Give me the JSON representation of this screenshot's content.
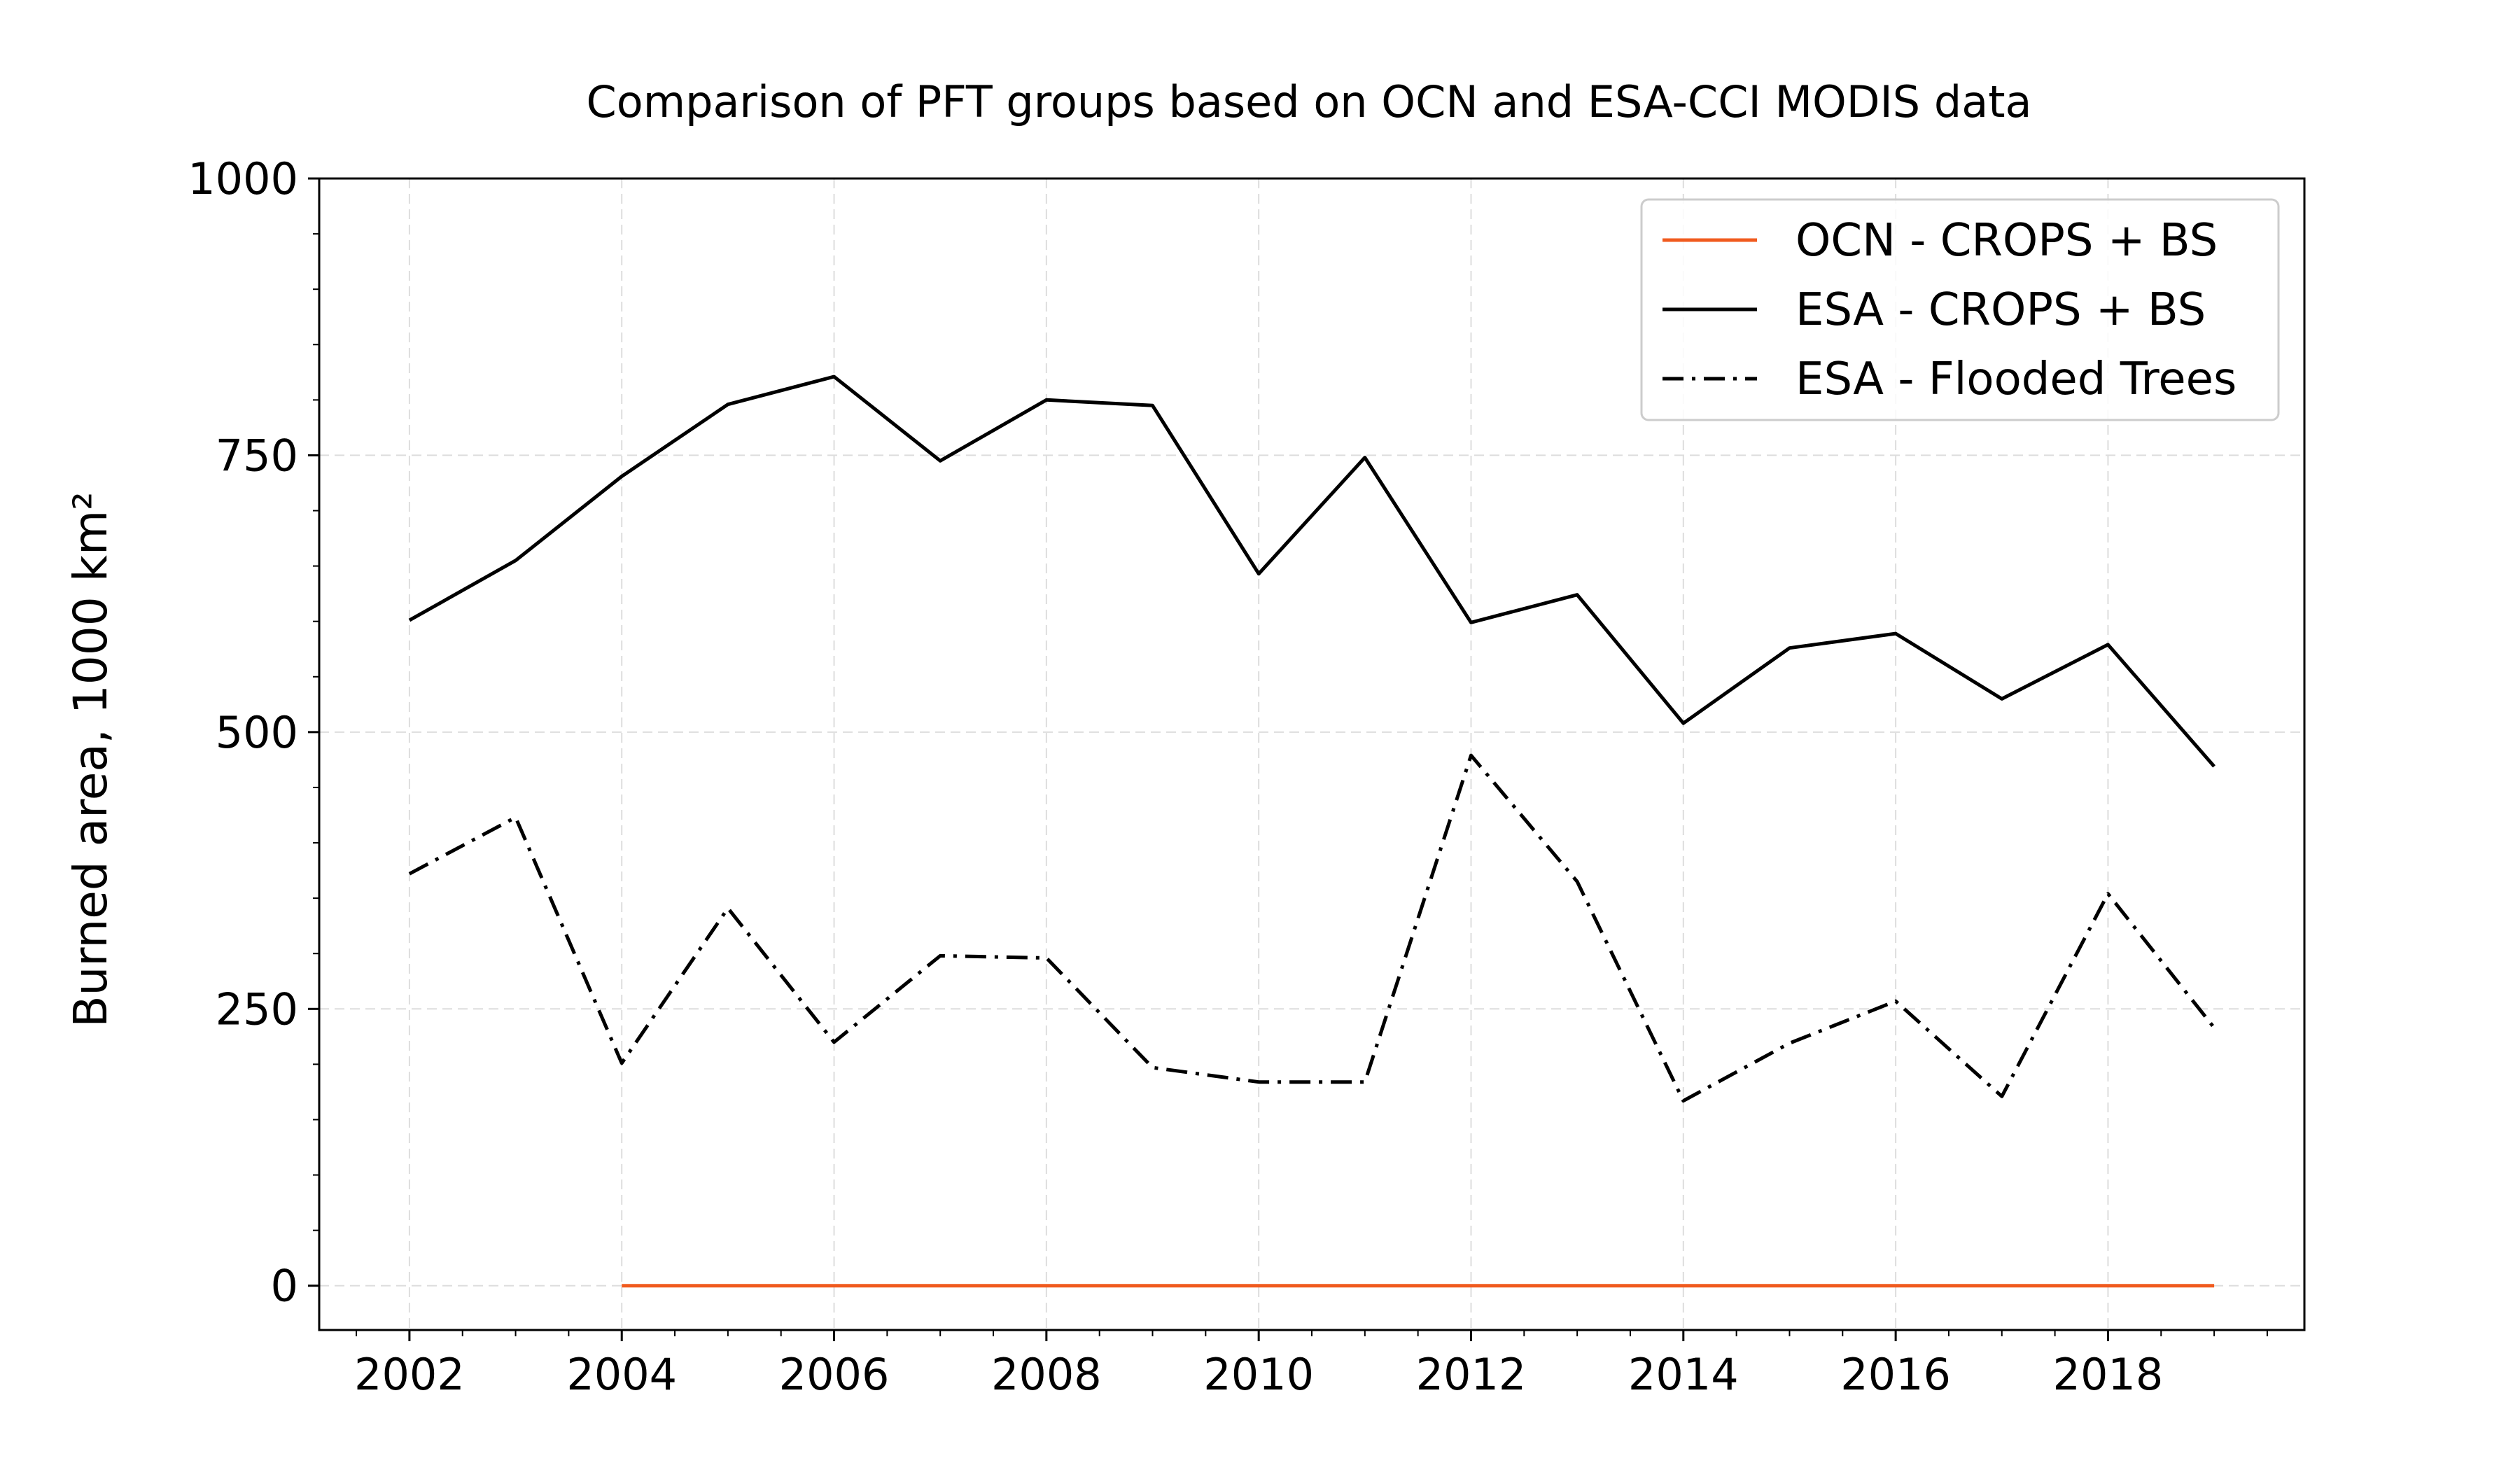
{
  "chart_data": {
    "type": "line",
    "title": "Comparison of PFT groups based on OCN and ESA-CCI MODIS data",
    "xlabel": "",
    "ylabel": "Burned area, 1000 km²",
    "xlim": [
      2001.15,
      2019.85
    ],
    "ylim": [
      -40,
      1000
    ],
    "xticks": [
      2002,
      2004,
      2006,
      2008,
      2010,
      2012,
      2014,
      2016,
      2018
    ],
    "yticks": [
      0,
      250,
      500,
      750,
      1000
    ],
    "grid": true,
    "legend_position": "top-right",
    "series": [
      {
        "name": "OCN - CROPS + BS",
        "color": "#f05a1e",
        "style": "solid",
        "x": [
          2004,
          2005,
          2006,
          2007,
          2008,
          2009,
          2010,
          2011,
          2012,
          2013,
          2014,
          2015,
          2016,
          2017,
          2018,
          2019
        ],
        "values": [
          0,
          0,
          0,
          0,
          0,
          0,
          0,
          0,
          0,
          0,
          0,
          0,
          0,
          0,
          0,
          0
        ]
      },
      {
        "name": "ESA - CROPS + BS",
        "color": "#000000",
        "style": "solid",
        "x": [
          2002,
          2003,
          2004,
          2005,
          2006,
          2007,
          2008,
          2009,
          2010,
          2011,
          2012,
          2013,
          2014,
          2015,
          2016,
          2017,
          2018,
          2019
        ],
        "values": [
          601,
          655,
          731,
          796,
          821,
          745,
          800,
          795,
          643,
          748,
          599,
          624,
          508,
          576,
          589,
          530,
          579,
          469
        ]
      },
      {
        "name": "ESA - Flooded Trees",
        "color": "#000000",
        "style": "dashdot",
        "x": [
          2002,
          2003,
          2004,
          2005,
          2006,
          2007,
          2008,
          2009,
          2010,
          2011,
          2012,
          2013,
          2014,
          2015,
          2016,
          2017,
          2018,
          2019
        ],
        "values": [
          372,
          423,
          201,
          341,
          220,
          298,
          296,
          197,
          184,
          184,
          479,
          365,
          167,
          219,
          257,
          171,
          354,
          233
        ]
      }
    ]
  }
}
